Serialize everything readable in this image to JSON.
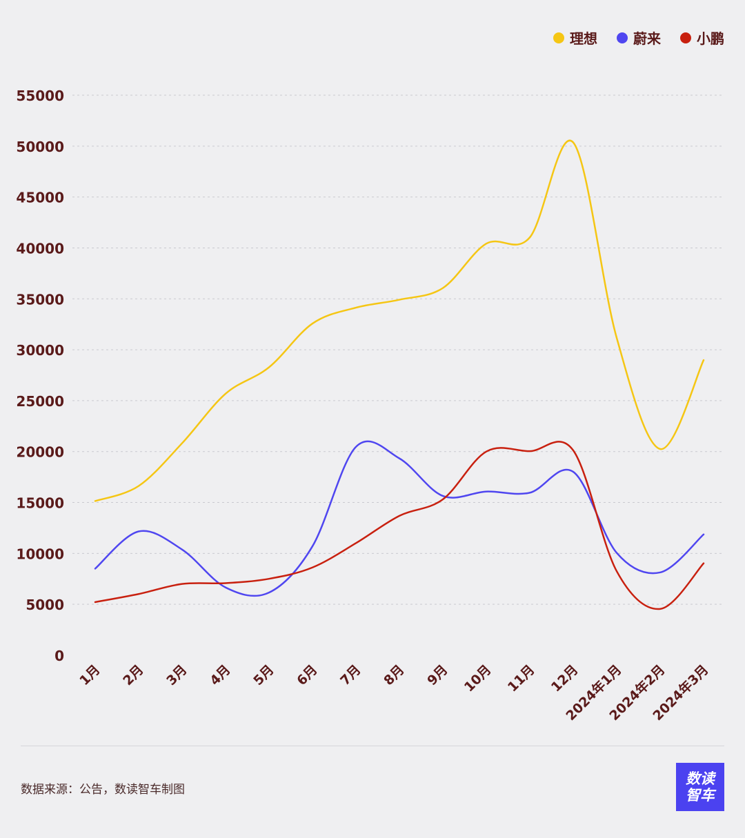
{
  "legend": [
    {
      "label": "理想",
      "color": "#f5c614"
    },
    {
      "label": "蔚来",
      "color": "#4f46f0"
    },
    {
      "label": "小鹏",
      "color": "#c8200f"
    }
  ],
  "source": "数据来源：公告，数读智车制图",
  "logo": {
    "line1": "数读",
    "line2": "智车"
  },
  "chart_data": {
    "type": "line",
    "categories": [
      "1月",
      "2月",
      "3月",
      "4月",
      "5月",
      "6月",
      "7月",
      "8月",
      "9月",
      "10月",
      "11月",
      "12月",
      "2024年1月",
      "2024年2月",
      "2024年3月"
    ],
    "series": [
      {
        "name": "理想",
        "color": "#f5c614",
        "values": [
          15141,
          16620,
          20823,
          25681,
          28277,
          32575,
          34134,
          34914,
          36060,
          40422,
          41030,
          50353,
          31165,
          20251,
          28984
        ]
      },
      {
        "name": "蔚来",
        "color": "#4f46f0",
        "values": [
          8506,
          12157,
          10378,
          6658,
          6155,
          10707,
          20462,
          19329,
          15641,
          16074,
          15959,
          18012,
          10055,
          8132,
          11866
        ]
      },
      {
        "name": "小鹏",
        "color": "#c8200f",
        "values": [
          5218,
          6010,
          7002,
          7079,
          7506,
          8620,
          11008,
          13690,
          15310,
          20002,
          20041,
          20115,
          8250,
          4545,
          9026
        ]
      }
    ],
    "yticks": [
      0,
      5000,
      10000,
      15000,
      20000,
      25000,
      30000,
      35000,
      40000,
      45000,
      50000,
      55000
    ],
    "ylim": [
      0,
      55000
    ],
    "grid": true,
    "legend_position": "top-right"
  }
}
